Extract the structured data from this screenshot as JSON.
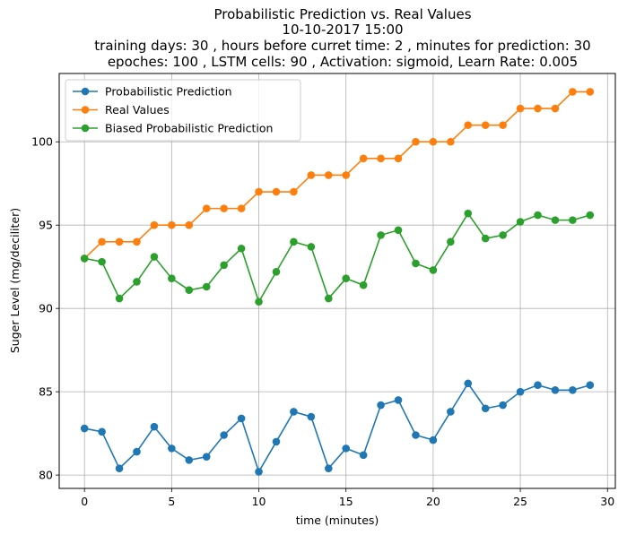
{
  "chart_data": {
    "type": "line",
    "title": [
      "Probabilistic Prediction vs. Real Values",
      "10-10-2017 15:00",
      "training days: 30 , hours before curret time: 2 , minutes for prediction: 30",
      "epoches: 100 , LSTM cells: 90 , Activation: sigmoid, Learn Rate: 0.005"
    ],
    "xlabel": "time (minutes)",
    "ylabel": "Suger Level (mg/deciliter)",
    "xlim": [
      -1.45,
      30.45
    ],
    "ylim": [
      79.2,
      104.1
    ],
    "xticks": [
      0,
      5,
      10,
      15,
      20,
      25,
      30
    ],
    "yticks": [
      80,
      85,
      90,
      95,
      100
    ],
    "grid": true,
    "legend_position": "upper-left",
    "x": [
      0,
      1,
      2,
      3,
      4,
      5,
      6,
      7,
      8,
      9,
      10,
      11,
      12,
      13,
      14,
      15,
      16,
      17,
      18,
      19,
      20,
      21,
      22,
      23,
      24,
      25,
      26,
      27,
      28,
      29
    ],
    "series": [
      {
        "name": "Probabilistic Prediction",
        "color": "#1f77b4",
        "values": [
          82.8,
          82.6,
          80.4,
          81.4,
          82.9,
          81.6,
          80.9,
          81.1,
          82.4,
          83.4,
          80.2,
          82.0,
          83.8,
          83.5,
          80.4,
          81.6,
          81.2,
          84.2,
          84.5,
          82.4,
          82.1,
          83.8,
          85.5,
          84.0,
          84.2,
          85.0,
          85.4,
          85.1,
          85.1,
          85.4
        ]
      },
      {
        "name": "Real Values",
        "color": "#ff7f0e",
        "values": [
          93,
          94,
          94,
          94,
          95,
          95,
          95,
          96,
          96,
          96,
          97,
          97,
          97,
          98,
          98,
          98,
          99,
          99,
          99,
          100,
          100,
          100,
          101,
          101,
          101,
          102,
          102,
          102,
          103,
          103
        ]
      },
      {
        "name": "Biased Probabilistic Prediction",
        "color": "#2ca02c",
        "values": [
          93.0,
          92.8,
          90.6,
          91.6,
          93.1,
          91.8,
          91.1,
          91.3,
          92.6,
          93.6,
          90.4,
          92.2,
          94.0,
          93.7,
          90.6,
          91.8,
          91.4,
          94.4,
          94.7,
          92.7,
          92.3,
          94.0,
          95.7,
          94.2,
          94.4,
          95.2,
          95.6,
          95.3,
          95.3,
          95.6
        ]
      }
    ]
  }
}
